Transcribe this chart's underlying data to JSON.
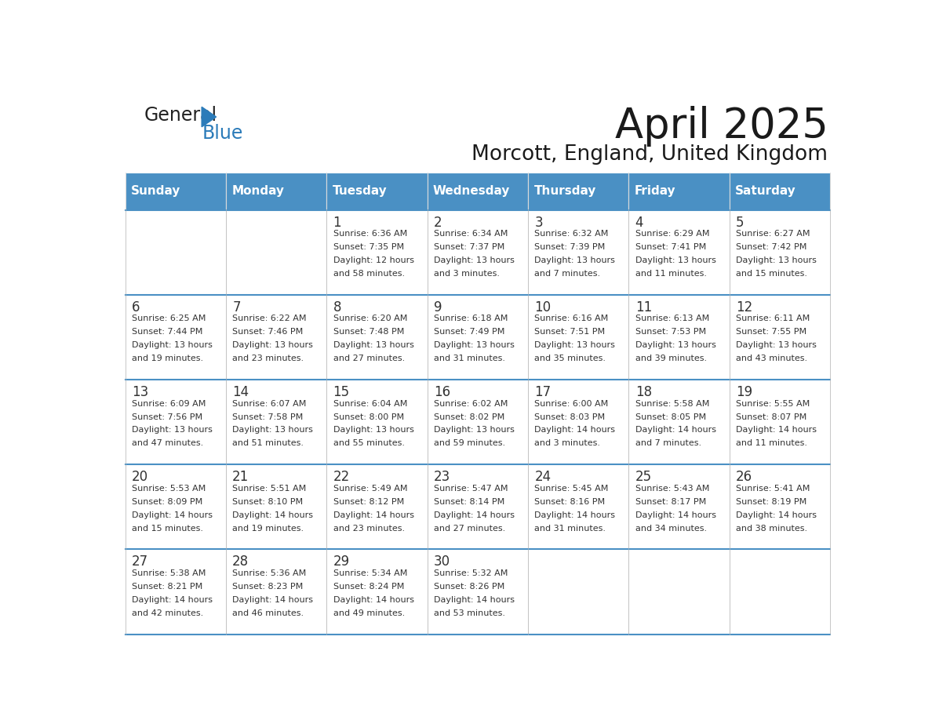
{
  "title": "April 2025",
  "subtitle": "Morcott, England, United Kingdom",
  "days_of_week": [
    "Sunday",
    "Monday",
    "Tuesday",
    "Wednesday",
    "Thursday",
    "Friday",
    "Saturday"
  ],
  "header_bg": "#4A90C4",
  "header_text": "#FFFFFF",
  "row_bg_light": "#FFFFFF",
  "cell_border": "#BBBBBB",
  "day_num_color": "#333333",
  "info_text_color": "#333333",
  "title_color": "#1a1a1a",
  "subtitle_color": "#1a1a1a",
  "logo_black": "#222222",
  "logo_blue": "#2B7BB9",
  "row_border_blue": "#4A90C4",
  "weeks": [
    {
      "days": [
        {
          "date": "",
          "sunrise": "",
          "sunset": "",
          "daylight": ""
        },
        {
          "date": "",
          "sunrise": "",
          "sunset": "",
          "daylight": ""
        },
        {
          "date": "1",
          "sunrise": "Sunrise: 6:36 AM",
          "sunset": "Sunset: 7:35 PM",
          "daylight": "Daylight: 12 hours\nand 58 minutes."
        },
        {
          "date": "2",
          "sunrise": "Sunrise: 6:34 AM",
          "sunset": "Sunset: 7:37 PM",
          "daylight": "Daylight: 13 hours\nand 3 minutes."
        },
        {
          "date": "3",
          "sunrise": "Sunrise: 6:32 AM",
          "sunset": "Sunset: 7:39 PM",
          "daylight": "Daylight: 13 hours\nand 7 minutes."
        },
        {
          "date": "4",
          "sunrise": "Sunrise: 6:29 AM",
          "sunset": "Sunset: 7:41 PM",
          "daylight": "Daylight: 13 hours\nand 11 minutes."
        },
        {
          "date": "5",
          "sunrise": "Sunrise: 6:27 AM",
          "sunset": "Sunset: 7:42 PM",
          "daylight": "Daylight: 13 hours\nand 15 minutes."
        }
      ]
    },
    {
      "days": [
        {
          "date": "6",
          "sunrise": "Sunrise: 6:25 AM",
          "sunset": "Sunset: 7:44 PM",
          "daylight": "Daylight: 13 hours\nand 19 minutes."
        },
        {
          "date": "7",
          "sunrise": "Sunrise: 6:22 AM",
          "sunset": "Sunset: 7:46 PM",
          "daylight": "Daylight: 13 hours\nand 23 minutes."
        },
        {
          "date": "8",
          "sunrise": "Sunrise: 6:20 AM",
          "sunset": "Sunset: 7:48 PM",
          "daylight": "Daylight: 13 hours\nand 27 minutes."
        },
        {
          "date": "9",
          "sunrise": "Sunrise: 6:18 AM",
          "sunset": "Sunset: 7:49 PM",
          "daylight": "Daylight: 13 hours\nand 31 minutes."
        },
        {
          "date": "10",
          "sunrise": "Sunrise: 6:16 AM",
          "sunset": "Sunset: 7:51 PM",
          "daylight": "Daylight: 13 hours\nand 35 minutes."
        },
        {
          "date": "11",
          "sunrise": "Sunrise: 6:13 AM",
          "sunset": "Sunset: 7:53 PM",
          "daylight": "Daylight: 13 hours\nand 39 minutes."
        },
        {
          "date": "12",
          "sunrise": "Sunrise: 6:11 AM",
          "sunset": "Sunset: 7:55 PM",
          "daylight": "Daylight: 13 hours\nand 43 minutes."
        }
      ]
    },
    {
      "days": [
        {
          "date": "13",
          "sunrise": "Sunrise: 6:09 AM",
          "sunset": "Sunset: 7:56 PM",
          "daylight": "Daylight: 13 hours\nand 47 minutes."
        },
        {
          "date": "14",
          "sunrise": "Sunrise: 6:07 AM",
          "sunset": "Sunset: 7:58 PM",
          "daylight": "Daylight: 13 hours\nand 51 minutes."
        },
        {
          "date": "15",
          "sunrise": "Sunrise: 6:04 AM",
          "sunset": "Sunset: 8:00 PM",
          "daylight": "Daylight: 13 hours\nand 55 minutes."
        },
        {
          "date": "16",
          "sunrise": "Sunrise: 6:02 AM",
          "sunset": "Sunset: 8:02 PM",
          "daylight": "Daylight: 13 hours\nand 59 minutes."
        },
        {
          "date": "17",
          "sunrise": "Sunrise: 6:00 AM",
          "sunset": "Sunset: 8:03 PM",
          "daylight": "Daylight: 14 hours\nand 3 minutes."
        },
        {
          "date": "18",
          "sunrise": "Sunrise: 5:58 AM",
          "sunset": "Sunset: 8:05 PM",
          "daylight": "Daylight: 14 hours\nand 7 minutes."
        },
        {
          "date": "19",
          "sunrise": "Sunrise: 5:55 AM",
          "sunset": "Sunset: 8:07 PM",
          "daylight": "Daylight: 14 hours\nand 11 minutes."
        }
      ]
    },
    {
      "days": [
        {
          "date": "20",
          "sunrise": "Sunrise: 5:53 AM",
          "sunset": "Sunset: 8:09 PM",
          "daylight": "Daylight: 14 hours\nand 15 minutes."
        },
        {
          "date": "21",
          "sunrise": "Sunrise: 5:51 AM",
          "sunset": "Sunset: 8:10 PM",
          "daylight": "Daylight: 14 hours\nand 19 minutes."
        },
        {
          "date": "22",
          "sunrise": "Sunrise: 5:49 AM",
          "sunset": "Sunset: 8:12 PM",
          "daylight": "Daylight: 14 hours\nand 23 minutes."
        },
        {
          "date": "23",
          "sunrise": "Sunrise: 5:47 AM",
          "sunset": "Sunset: 8:14 PM",
          "daylight": "Daylight: 14 hours\nand 27 minutes."
        },
        {
          "date": "24",
          "sunrise": "Sunrise: 5:45 AM",
          "sunset": "Sunset: 8:16 PM",
          "daylight": "Daylight: 14 hours\nand 31 minutes."
        },
        {
          "date": "25",
          "sunrise": "Sunrise: 5:43 AM",
          "sunset": "Sunset: 8:17 PM",
          "daylight": "Daylight: 14 hours\nand 34 minutes."
        },
        {
          "date": "26",
          "sunrise": "Sunrise: 5:41 AM",
          "sunset": "Sunset: 8:19 PM",
          "daylight": "Daylight: 14 hours\nand 38 minutes."
        }
      ]
    },
    {
      "days": [
        {
          "date": "27",
          "sunrise": "Sunrise: 5:38 AM",
          "sunset": "Sunset: 8:21 PM",
          "daylight": "Daylight: 14 hours\nand 42 minutes."
        },
        {
          "date": "28",
          "sunrise": "Sunrise: 5:36 AM",
          "sunset": "Sunset: 8:23 PM",
          "daylight": "Daylight: 14 hours\nand 46 minutes."
        },
        {
          "date": "29",
          "sunrise": "Sunrise: 5:34 AM",
          "sunset": "Sunset: 8:24 PM",
          "daylight": "Daylight: 14 hours\nand 49 minutes."
        },
        {
          "date": "30",
          "sunrise": "Sunrise: 5:32 AM",
          "sunset": "Sunset: 8:26 PM",
          "daylight": "Daylight: 14 hours\nand 53 minutes."
        },
        {
          "date": "",
          "sunrise": "",
          "sunset": "",
          "daylight": ""
        },
        {
          "date": "",
          "sunrise": "",
          "sunset": "",
          "daylight": ""
        },
        {
          "date": "",
          "sunrise": "",
          "sunset": "",
          "daylight": ""
        }
      ]
    }
  ]
}
